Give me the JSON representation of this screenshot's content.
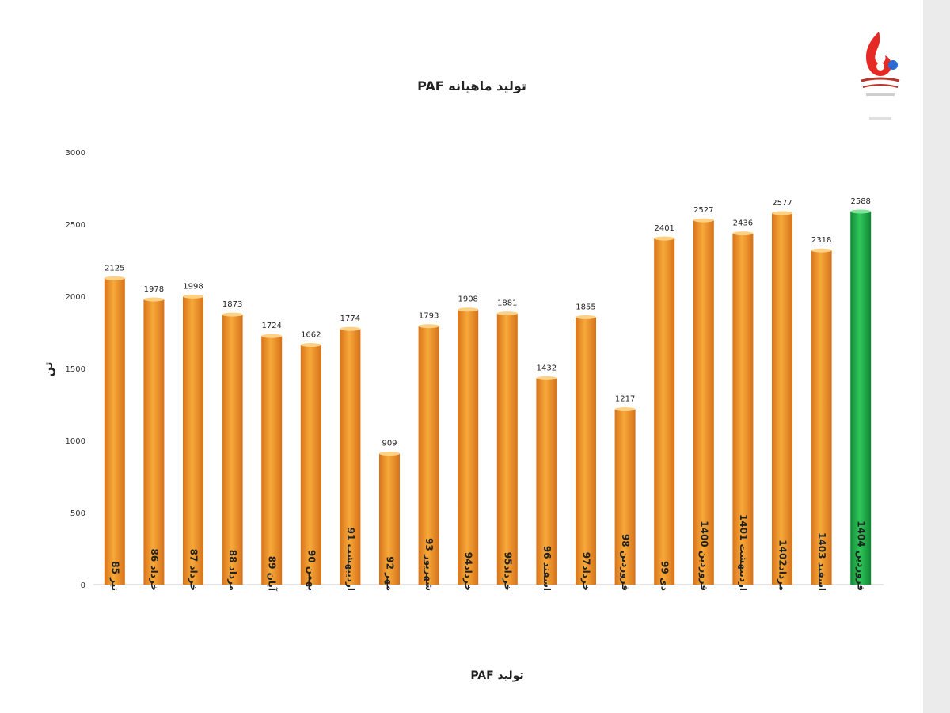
{
  "chart_data": {
    "type": "bar",
    "title": "تولید ماهیانه PAF",
    "xlabel": "تولید PAF",
    "ylabel": "تن",
    "ylim": [
      0,
      3000
    ],
    "yticks": [
      0,
      500,
      1000,
      1500,
      2000,
      2500,
      3000
    ],
    "grid": false,
    "legend": "none",
    "colors": {
      "default": "#f39a2e",
      "highlight": "#22b24c"
    },
    "categories": [
      "تیر 85",
      "خرداد 86",
      "خرداد 87",
      "مرداد 88",
      "آبان 89",
      "بهمن 90",
      "اردیبهشت 91",
      "مهر 92",
      "شهریور 93",
      "خرداد94",
      "خرداد95",
      "اسفند 96",
      "خرداد97",
      "فروردین 98",
      "دی 99",
      "فروردین 1400",
      "اردیبهشت 1401",
      "مرداد1402",
      "اسفند 1403",
      "فروردین 1404"
    ],
    "values": [
      2125,
      1978,
      1998,
      1873,
      1724,
      1662,
      1774,
      909,
      1793,
      1908,
      1881,
      1432,
      1855,
      1217,
      2401,
      2527,
      2436,
      2577,
      2318,
      2588
    ],
    "highlight_index": 19
  }
}
